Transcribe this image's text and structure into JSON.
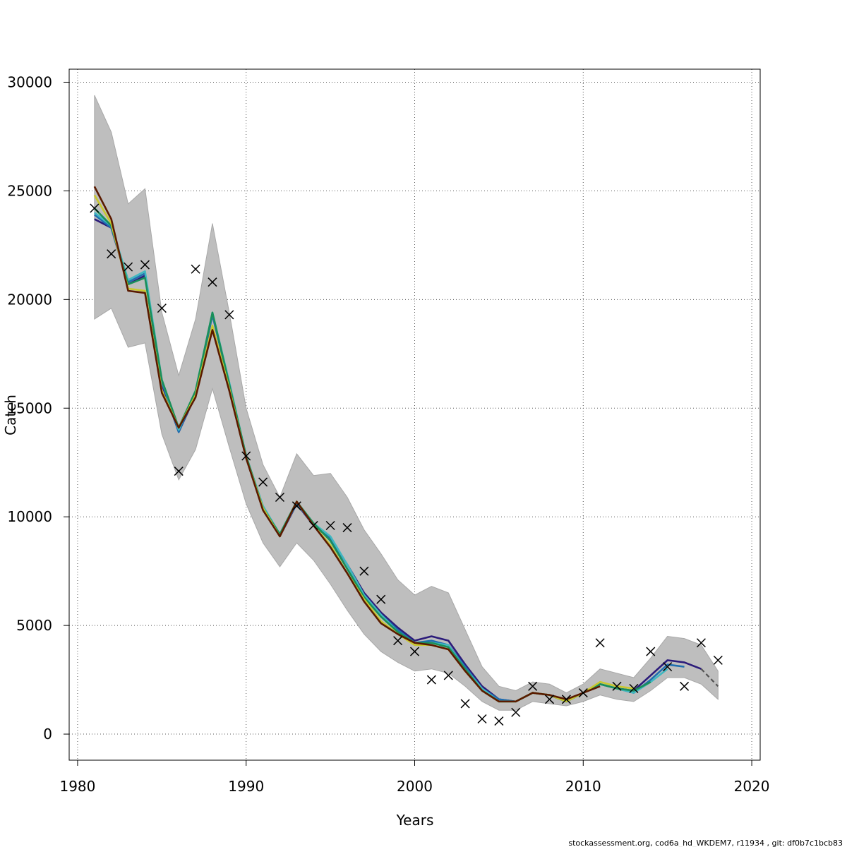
{
  "chart_data": {
    "type": "line",
    "xlabel": "Years",
    "ylabel": "Catch",
    "xlim": [
      1979.5,
      2020.5
    ],
    "ylim": [
      -1200,
      30600
    ],
    "x_ticks": [
      1980,
      1990,
      2000,
      2010,
      2020
    ],
    "y_ticks": [
      0,
      5000,
      10000,
      15000,
      20000,
      25000,
      30000
    ],
    "grid": true,
    "band": {
      "color": "#bebebe",
      "x": [
        1981,
        1982,
        1983,
        1984,
        1985,
        1986,
        1987,
        1988,
        1989,
        1990,
        1991,
        1992,
        1993,
        1994,
        1995,
        1996,
        1997,
        1998,
        1999,
        2000,
        2001,
        2002,
        2003,
        2004,
        2005,
        2006,
        2007,
        2008,
        2009,
        2010,
        2011,
        2012,
        2013,
        2014,
        2015,
        2016,
        2017,
        2018
      ],
      "upper": [
        29400,
        27700,
        24400,
        25100,
        19400,
        16500,
        19100,
        23500,
        19400,
        15000,
        12400,
        10900,
        12900,
        11900,
        12000,
        10900,
        9400,
        8300,
        7100,
        6400,
        6800,
        6500,
        4800,
        3100,
        2200,
        2000,
        2400,
        2300,
        1900,
        2300,
        3000,
        2800,
        2600,
        3500,
        4500,
        4400,
        4100,
        2900
      ],
      "lower": [
        19100,
        19600,
        17800,
        18000,
        13800,
        11700,
        13100,
        15900,
        13200,
        10600,
        8800,
        7700,
        8800,
        8000,
        6900,
        5700,
        4600,
        3800,
        3300,
        2900,
        3000,
        2800,
        2200,
        1500,
        1100,
        1100,
        1500,
        1400,
        1300,
        1500,
        1800,
        1600,
        1500,
        2000,
        2600,
        2600,
        2300,
        1600
      ]
    },
    "series": [
      {
        "color": "#2b1b7a",
        "x": [
          1981,
          1982,
          1983,
          1984,
          1985,
          1986,
          1987,
          1988,
          1989,
          1990,
          1991,
          1992,
          1993,
          1994,
          1995,
          1996,
          1997,
          1998,
          1999,
          2000,
          2001,
          2002,
          2003,
          2004,
          2005,
          2006,
          2007,
          2008,
          2009,
          2010,
          2011,
          2012,
          2013,
          2014,
          2015,
          2016,
          2017
        ],
        "values": [
          23700,
          23300,
          20700,
          21100,
          16100,
          13900,
          15600,
          19300,
          16100,
          12700,
          10400,
          9100,
          10600,
          9600,
          9000,
          7800,
          6500,
          5600,
          4900,
          4300,
          4500,
          4300,
          3200,
          2200,
          1600,
          1500,
          1900,
          1800,
          1500,
          1900,
          2300,
          2100,
          2000,
          2700,
          3400,
          3300,
          3000
        ]
      },
      {
        "color": "#1f6fb0",
        "x": [
          1981,
          1982,
          1983,
          1984,
          1985,
          1986,
          1987,
          1988,
          1989,
          1990,
          1991,
          1992,
          1993,
          1994,
          1995,
          1996,
          1997,
          1998,
          1999,
          2000,
          2001,
          2002,
          2003,
          2004,
          2005,
          2006,
          2007,
          2008,
          2009,
          2010,
          2011,
          2012,
          2013,
          2014,
          2015,
          2016
        ],
        "values": [
          23900,
          23300,
          20800,
          21200,
          16200,
          13900,
          15700,
          19300,
          16100,
          12800,
          10400,
          9200,
          10600,
          9700,
          9000,
          7800,
          6400,
          5500,
          4800,
          4200,
          4300,
          4100,
          3100,
          2100,
          1600,
          1500,
          1900,
          1800,
          1500,
          1900,
          2300,
          2100,
          1900,
          2500,
          3200,
          3100
        ]
      },
      {
        "color": "#40b8c0",
        "x": [
          1981,
          1982,
          1983,
          1984,
          1985,
          1986,
          1987,
          1988,
          1989,
          1990,
          1991,
          1992,
          1993,
          1994,
          1995,
          1996,
          1997,
          1998,
          1999,
          2000,
          2001,
          2002,
          2003,
          2004,
          2005,
          2006,
          2007,
          2008,
          2009,
          2010,
          2011,
          2012,
          2013,
          2014,
          2015
        ],
        "values": [
          24000,
          23400,
          20900,
          21300,
          16300,
          14000,
          15800,
          19400,
          16200,
          12800,
          10500,
          9200,
          10700,
          9700,
          9100,
          7800,
          6400,
          5500,
          4700,
          4200,
          4200,
          4100,
          3000,
          2100,
          1500,
          1500,
          1900,
          1800,
          1500,
          1900,
          2300,
          2100,
          1900,
          2400,
          3000
        ]
      },
      {
        "color": "#1a8f5a",
        "x": [
          1981,
          1982,
          1983,
          1984,
          1985,
          1986,
          1987,
          1988,
          1989,
          1990,
          1991,
          1992,
          1993,
          1994,
          1995,
          1996,
          1997,
          1998,
          1999,
          2000,
          2001,
          2002,
          2003,
          2004,
          2005,
          2006,
          2007,
          2008,
          2009,
          2010,
          2011,
          2012,
          2013,
          2014
        ],
        "values": [
          24200,
          23400,
          20700,
          21000,
          16300,
          14100,
          15800,
          19400,
          16100,
          12800,
          10400,
          9200,
          10700,
          9700,
          8900,
          7600,
          6300,
          5400,
          4700,
          4200,
          4200,
          4000,
          3000,
          2000,
          1500,
          1500,
          1900,
          1800,
          1500,
          1900,
          2300,
          2100,
          2000,
          2400
        ]
      },
      {
        "color": "#c8c830",
        "x": [
          1981,
          1982,
          1983,
          1984,
          1985,
          1986,
          1987,
          1988,
          1989,
          1990,
          1991,
          1992,
          1993,
          1994,
          1995,
          1996,
          1997,
          1998,
          1999,
          2000,
          2001,
          2002,
          2003,
          2004,
          2005,
          2006,
          2007,
          2008,
          2009,
          2010,
          2011,
          2012,
          2013
        ],
        "values": [
          24800,
          23500,
          20500,
          20400,
          15800,
          14100,
          15600,
          18800,
          15900,
          12700,
          10400,
          9100,
          10700,
          9600,
          8700,
          7400,
          6200,
          5200,
          4600,
          4100,
          4100,
          3900,
          2900,
          2000,
          1500,
          1500,
          1900,
          1800,
          1500,
          1900,
          2400,
          2200,
          2100
        ]
      },
      {
        "color": "#5a1a00",
        "x": [
          1981,
          1982,
          1983,
          1984,
          1985,
          1986,
          1987,
          1988,
          1989,
          1990,
          1991,
          1992,
          1993,
          1994,
          1995,
          1996,
          1997,
          1998,
          1999,
          2000,
          2001,
          2002,
          2003,
          2004,
          2005,
          2006,
          2007,
          2008,
          2009,
          2010,
          2011
        ],
        "values": [
          25200,
          23700,
          20400,
          20300,
          15700,
          14100,
          15500,
          18600,
          15800,
          12700,
          10300,
          9100,
          10700,
          9600,
          8600,
          7400,
          6100,
          5100,
          4600,
          4200,
          4100,
          3900,
          2900,
          2000,
          1500,
          1500,
          1900,
          1800,
          1600,
          1900,
          2200
        ]
      }
    ],
    "dashed": {
      "color": "#555555",
      "x": [
        2017,
        2018
      ],
      "values": [
        3000,
        2200
      ]
    },
    "observations": {
      "marker": "x",
      "x": [
        1981,
        1982,
        1983,
        1984,
        1985,
        1986,
        1987,
        1988,
        1989,
        1990,
        1991,
        1992,
        1993,
        1994,
        1995,
        1996,
        1997,
        1998,
        1999,
        2000,
        2001,
        2002,
        2003,
        2004,
        2005,
        2006,
        2007,
        2008,
        2009,
        2010,
        2011,
        2012,
        2013,
        2014,
        2015,
        2016,
        2017,
        2018
      ],
      "values": [
        24200,
        22100,
        21500,
        21600,
        19600,
        12100,
        21400,
        20800,
        19300,
        12800,
        11600,
        10900,
        10500,
        9600,
        9600,
        9500,
        7500,
        6200,
        4300,
        3800,
        2500,
        2700,
        1400,
        700,
        600,
        1000,
        2200,
        1600,
        1600,
        1900,
        4200,
        2200,
        2100,
        3800,
        3100,
        2200,
        4200,
        3400
      ]
    },
    "footer": "stockassessment.org, cod6a_hd_WKDEM7, r11934 , git: df0b7c1bcb83"
  }
}
